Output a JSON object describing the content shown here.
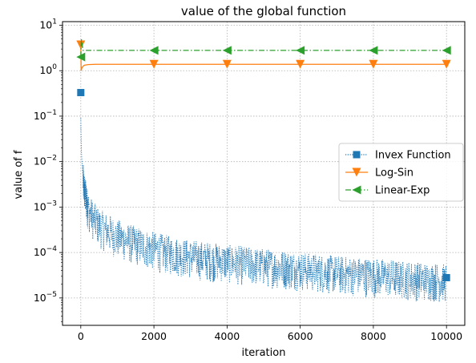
{
  "chart_data": {
    "type": "line",
    "title": "value of the global function",
    "xlabel": "iteration",
    "ylabel": "value of f",
    "xlim": [
      -500,
      10500
    ],
    "ylim": [
      2.5e-06,
      12
    ],
    "yscale": "log",
    "grid": true,
    "legend_position": "center-right",
    "x_ticks": [
      0,
      2000,
      4000,
      6000,
      8000,
      10000
    ],
    "x_tick_labels": [
      "0",
      "2000",
      "4000",
      "6000",
      "8000",
      "10000"
    ],
    "y_ticks": [
      1e-05,
      0.0001,
      0.001,
      0.01,
      0.1,
      1,
      10
    ],
    "y_tick_labels": [
      {
        "base": "10",
        "exp": "−5"
      },
      {
        "base": "10",
        "exp": "−4"
      },
      {
        "base": "10",
        "exp": "−3"
      },
      {
        "base": "10",
        "exp": "−2"
      },
      {
        "base": "10",
        "exp": "−1"
      },
      {
        "base": "10",
        "exp": "0"
      },
      {
        "base": "10",
        "exp": "1"
      }
    ],
    "series": [
      {
        "name": "Invex Function",
        "color": "#1f77b4",
        "line_style": "dotted",
        "marker": "square",
        "trend": {
          "x": [
            1,
            5,
            10,
            20,
            40,
            60,
            100,
            150,
            200,
            300,
            500,
            800,
            1000,
            1500,
            2000,
            3000,
            4000,
            5000,
            6000,
            7000,
            8000,
            9000,
            10000
          ],
          "y": [
            0.09,
            0.05,
            0.03,
            0.015,
            0.008,
            0.005,
            0.003,
            0.0018,
            0.0012,
            0.0008,
            0.0005,
            0.00035,
            0.00028,
            0.0002,
            0.00015,
            0.0001,
            8e-05,
            6.5e-05,
            5.5e-05,
            4.5e-05,
            4e-05,
            3.4e-05,
            3e-05
          ]
        },
        "noise_low_ratio": 0.25,
        "noise_high_ratio": 1.9,
        "markers": {
          "x": [
            0,
            10000
          ],
          "y": [
            0.33,
            2.8e-05
          ]
        }
      },
      {
        "name": "Log-Sin",
        "color": "#ff7f0e",
        "line_style": "solid",
        "marker": "triangle-down",
        "line": {
          "x": [
            0,
            10,
            30,
            60,
            100,
            200,
            400,
            10000
          ],
          "y": [
            3.7,
            1.0,
            1.15,
            1.25,
            1.32,
            1.36,
            1.38,
            1.38
          ]
        },
        "markers": {
          "x": [
            0,
            2000,
            4000,
            6000,
            8000,
            10000
          ],
          "y": [
            3.7,
            1.38,
            1.38,
            1.38,
            1.38,
            1.38
          ]
        }
      },
      {
        "name": "Linear-Exp",
        "color": "#2ca02c",
        "line_style": "dashdot",
        "marker": "triangle-left",
        "line": {
          "x": [
            0,
            15,
            60,
            10000
          ],
          "y": [
            2.0,
            5.0,
            2.8,
            2.8
          ]
        },
        "markers": {
          "x": [
            0,
            2000,
            4000,
            6000,
            8000,
            10000
          ],
          "y": [
            2.0,
            2.8,
            2.8,
            2.8,
            2.8,
            2.8
          ]
        }
      }
    ]
  }
}
